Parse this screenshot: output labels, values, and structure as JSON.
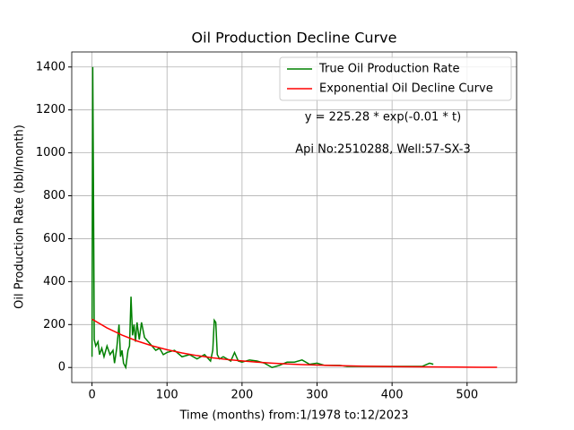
{
  "chart_data": {
    "type": "line",
    "title": "Oil Production Decline Curve",
    "xlabel": "Time (months) from:1/1978 to:12/2023",
    "ylabel": "Oil Production Rate (bbl/month)",
    "annotations": [
      "y = 225.28 * exp(-0.01 * t)",
      "Api No:2510288, Well:57-SX-3"
    ],
    "xlim": [
      -27,
      566
    ],
    "xticks": [
      0,
      100,
      200,
      300,
      400,
      500
    ],
    "ylim": [
      -70,
      1470
    ],
    "yticks": [
      0,
      200,
      400,
      600,
      800,
      1000,
      1200,
      1400
    ],
    "grid": true,
    "legend": "upper right",
    "series": [
      {
        "name": "True Oil Production Rate",
        "color": "#008000",
        "x": [
          0,
          1,
          2,
          3,
          5,
          8,
          10,
          13,
          16,
          20,
          24,
          28,
          30,
          33,
          36,
          38,
          40,
          42,
          45,
          48,
          50,
          52,
          54,
          56,
          58,
          60,
          63,
          66,
          70,
          75,
          80,
          85,
          90,
          95,
          100,
          110,
          120,
          130,
          140,
          150,
          158,
          161,
          163,
          165,
          167,
          170,
          175,
          180,
          185,
          190,
          195,
          200,
          210,
          220,
          230,
          240,
          250,
          260,
          270,
          280,
          290,
          300,
          310,
          320,
          330,
          340,
          350,
          360,
          380,
          400,
          420,
          440,
          450,
          455
        ],
        "values": [
          50,
          1400,
          800,
          130,
          100,
          120,
          60,
          90,
          50,
          100,
          60,
          80,
          20,
          90,
          200,
          50,
          80,
          20,
          0,
          80,
          100,
          330,
          150,
          200,
          120,
          210,
          130,
          210,
          140,
          120,
          100,
          80,
          90,
          60,
          70,
          80,
          50,
          60,
          40,
          60,
          30,
          80,
          220,
          210,
          60,
          40,
          50,
          40,
          30,
          70,
          30,
          25,
          35,
          30,
          20,
          0,
          10,
          25,
          25,
          35,
          15,
          20,
          10,
          10,
          10,
          5,
          5,
          5,
          5,
          5,
          5,
          5,
          20,
          15
        ]
      },
      {
        "name": "Exponential Oil Decline Curve",
        "color": "#ff0000",
        "x": [
          0,
          20,
          40,
          60,
          80,
          100,
          120,
          140,
          160,
          180,
          200,
          220,
          240,
          260,
          280,
          300,
          320,
          340,
          360,
          380,
          400,
          420,
          440,
          460,
          480,
          500,
          520,
          540
        ],
        "values": [
          225.3,
          184.4,
          151.0,
          123.6,
          101.2,
          82.9,
          67.9,
          55.5,
          45.5,
          37.2,
          30.5,
          25.0,
          20.4,
          16.7,
          13.7,
          11.2,
          9.2,
          7.5,
          6.2,
          5.0,
          4.1,
          3.4,
          2.8,
          2.3,
          1.9,
          1.5,
          1.2,
          1.0
        ]
      }
    ]
  }
}
